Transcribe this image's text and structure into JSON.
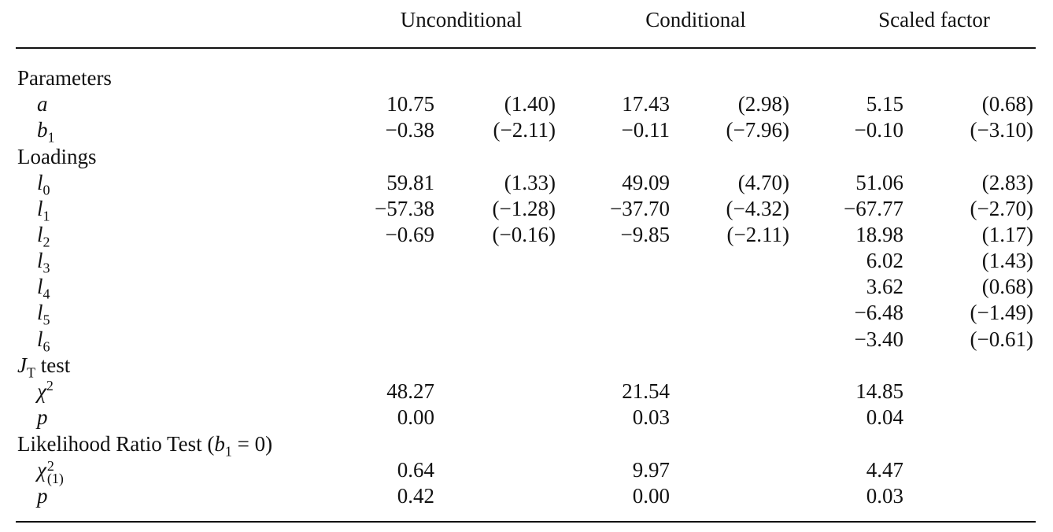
{
  "headers": [
    "Unconditional",
    "Conditional",
    "Scaled factor"
  ],
  "sections": [
    {
      "label": "Parameters",
      "rows": [
        {
          "sym": "a",
          "sub": "",
          "sup": "",
          "v": [
            "10.75",
            "(1.40)",
            "17.43",
            "(2.98)",
            "5.15",
            "(0.68)"
          ]
        },
        {
          "sym": "b",
          "sub": "1",
          "sup": "",
          "v": [
            "−0.38",
            "(−2.11)",
            "−0.11",
            "(−7.96)",
            "−0.10",
            "(−3.10)"
          ]
        }
      ]
    },
    {
      "label": "Loadings",
      "rows": [
        {
          "sym": "l",
          "sub": "0",
          "sup": "",
          "v": [
            "59.81",
            "(1.33)",
            "49.09",
            "(4.70)",
            "51.06",
            "(2.83)"
          ]
        },
        {
          "sym": "l",
          "sub": "1",
          "sup": "",
          "v": [
            "−57.38",
            "(−1.28)",
            "−37.70",
            "(−4.32)",
            "−67.77",
            "(−2.70)"
          ]
        },
        {
          "sym": "l",
          "sub": "2",
          "sup": "",
          "v": [
            "−0.69",
            "(−0.16)",
            "−9.85",
            "(−2.11)",
            "18.98",
            "(1.17)"
          ]
        },
        {
          "sym": "l",
          "sub": "3",
          "sup": "",
          "v": [
            "",
            "",
            "",
            "",
            "6.02",
            "(1.43)"
          ]
        },
        {
          "sym": "l",
          "sub": "4",
          "sup": "",
          "v": [
            "",
            "",
            "",
            "",
            "3.62",
            "(0.68)"
          ]
        },
        {
          "sym": "l",
          "sub": "5",
          "sup": "",
          "v": [
            "",
            "",
            "",
            "",
            "−6.48",
            "(−1.49)"
          ]
        },
        {
          "sym": "l",
          "sub": "6",
          "sup": "",
          "v": [
            "",
            "",
            "",
            "",
            "−3.40",
            "(−0.61)"
          ]
        }
      ]
    },
    {
      "label": "J",
      "label_sub": "T",
      "label_rest": " test",
      "rows": [
        {
          "sym": "χ",
          "sub": "",
          "sup": "2",
          "v": [
            "48.27",
            "",
            "21.54",
            "",
            "14.85",
            ""
          ]
        },
        {
          "sym": "p",
          "sub": "",
          "sup": "",
          "v": [
            "0.00",
            "",
            "0.03",
            "",
            "0.04",
            ""
          ]
        }
      ]
    },
    {
      "label": "Likelihood Ratio Test (",
      "label_sub": "1",
      "label_rest": " = 0)",
      "label_var": "b",
      "rows": [
        {
          "sym": "χ",
          "sub": "(1)",
          "sup": "2",
          "v": [
            "0.64",
            "",
            "9.97",
            "",
            "4.47",
            ""
          ]
        },
        {
          "sym": "p",
          "sub": "",
          "sup": "",
          "v": [
            "0.42",
            "",
            "0.00",
            "",
            "0.03",
            ""
          ]
        }
      ]
    }
  ]
}
